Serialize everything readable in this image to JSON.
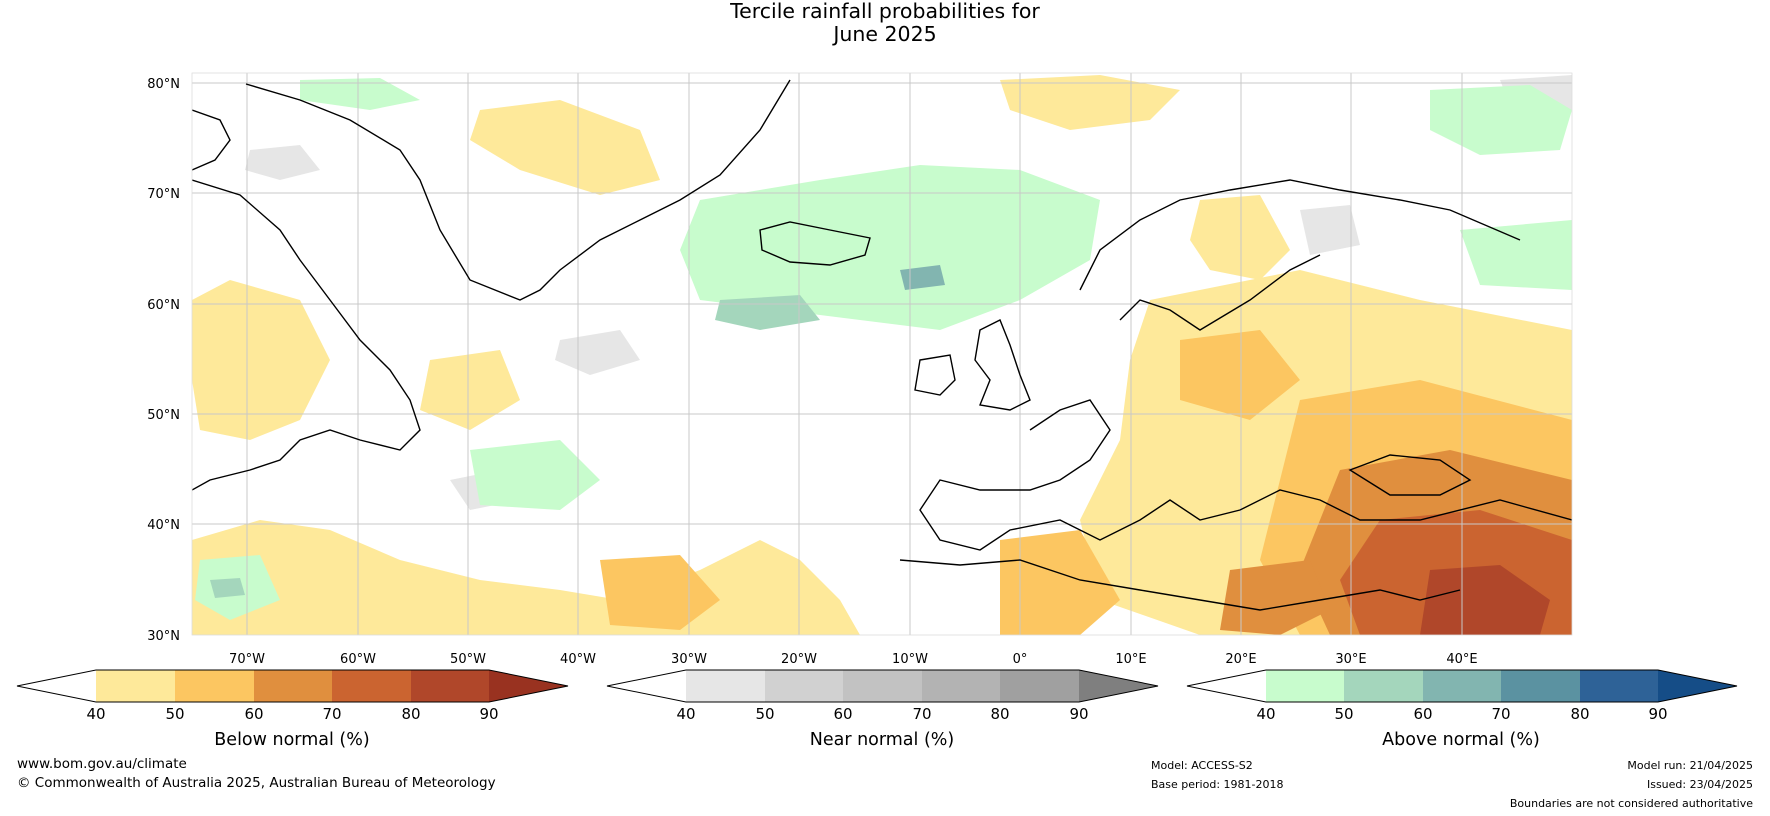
{
  "title": {
    "line1": "Tercile rainfall probabilities for",
    "line2": "June 2025"
  },
  "map": {
    "lat_labels": [
      "80°N",
      "70°N",
      "60°N",
      "50°N",
      "40°N",
      "30°N"
    ],
    "lon_labels": [
      "70°W",
      "60°W",
      "50°W",
      "40°W",
      "30°W",
      "20°W",
      "10°W",
      "0°",
      "10°E",
      "20°E",
      "30°E",
      "40°E"
    ]
  },
  "colorbars": [
    {
      "label": "Below normal (%)",
      "ticks": [
        "40",
        "50",
        "60",
        "70",
        "80",
        "90"
      ],
      "colors": [
        "#ffffff",
        "#fee99a",
        "#fcc661",
        "#e08f3e",
        "#cb6430",
        "#b0472a",
        "#993220"
      ]
    },
    {
      "label": "Near normal (%)",
      "ticks": [
        "40",
        "50",
        "60",
        "70",
        "80",
        "90"
      ],
      "colors": [
        "#ffffff",
        "#e6e6e6",
        "#d1d1d1",
        "#c2c2c2",
        "#b3b3b3",
        "#a0a0a0",
        "#7f7f7f"
      ]
    },
    {
      "label": "Above normal (%)",
      "ticks": [
        "40",
        "50",
        "60",
        "70",
        "80",
        "90"
      ],
      "colors": [
        "#ffffff",
        "#c8fccd",
        "#a4d6bc",
        "#82b5b0",
        "#5b92a1",
        "#2e6297",
        "#154d87"
      ]
    }
  ],
  "footer": {
    "website": "www.bom.gov.au/climate",
    "copyright": "© Commonwealth of Australia 2025, Australian Bureau of Meteorology",
    "model": "Model: ACCESS-S2",
    "base_period": "Base period: 1981-2018",
    "model_run": "Model run: 21/04/2025",
    "issued": "Issued: 23/04/2025",
    "disclaimer": "Boundaries are not considered authoritative"
  }
}
